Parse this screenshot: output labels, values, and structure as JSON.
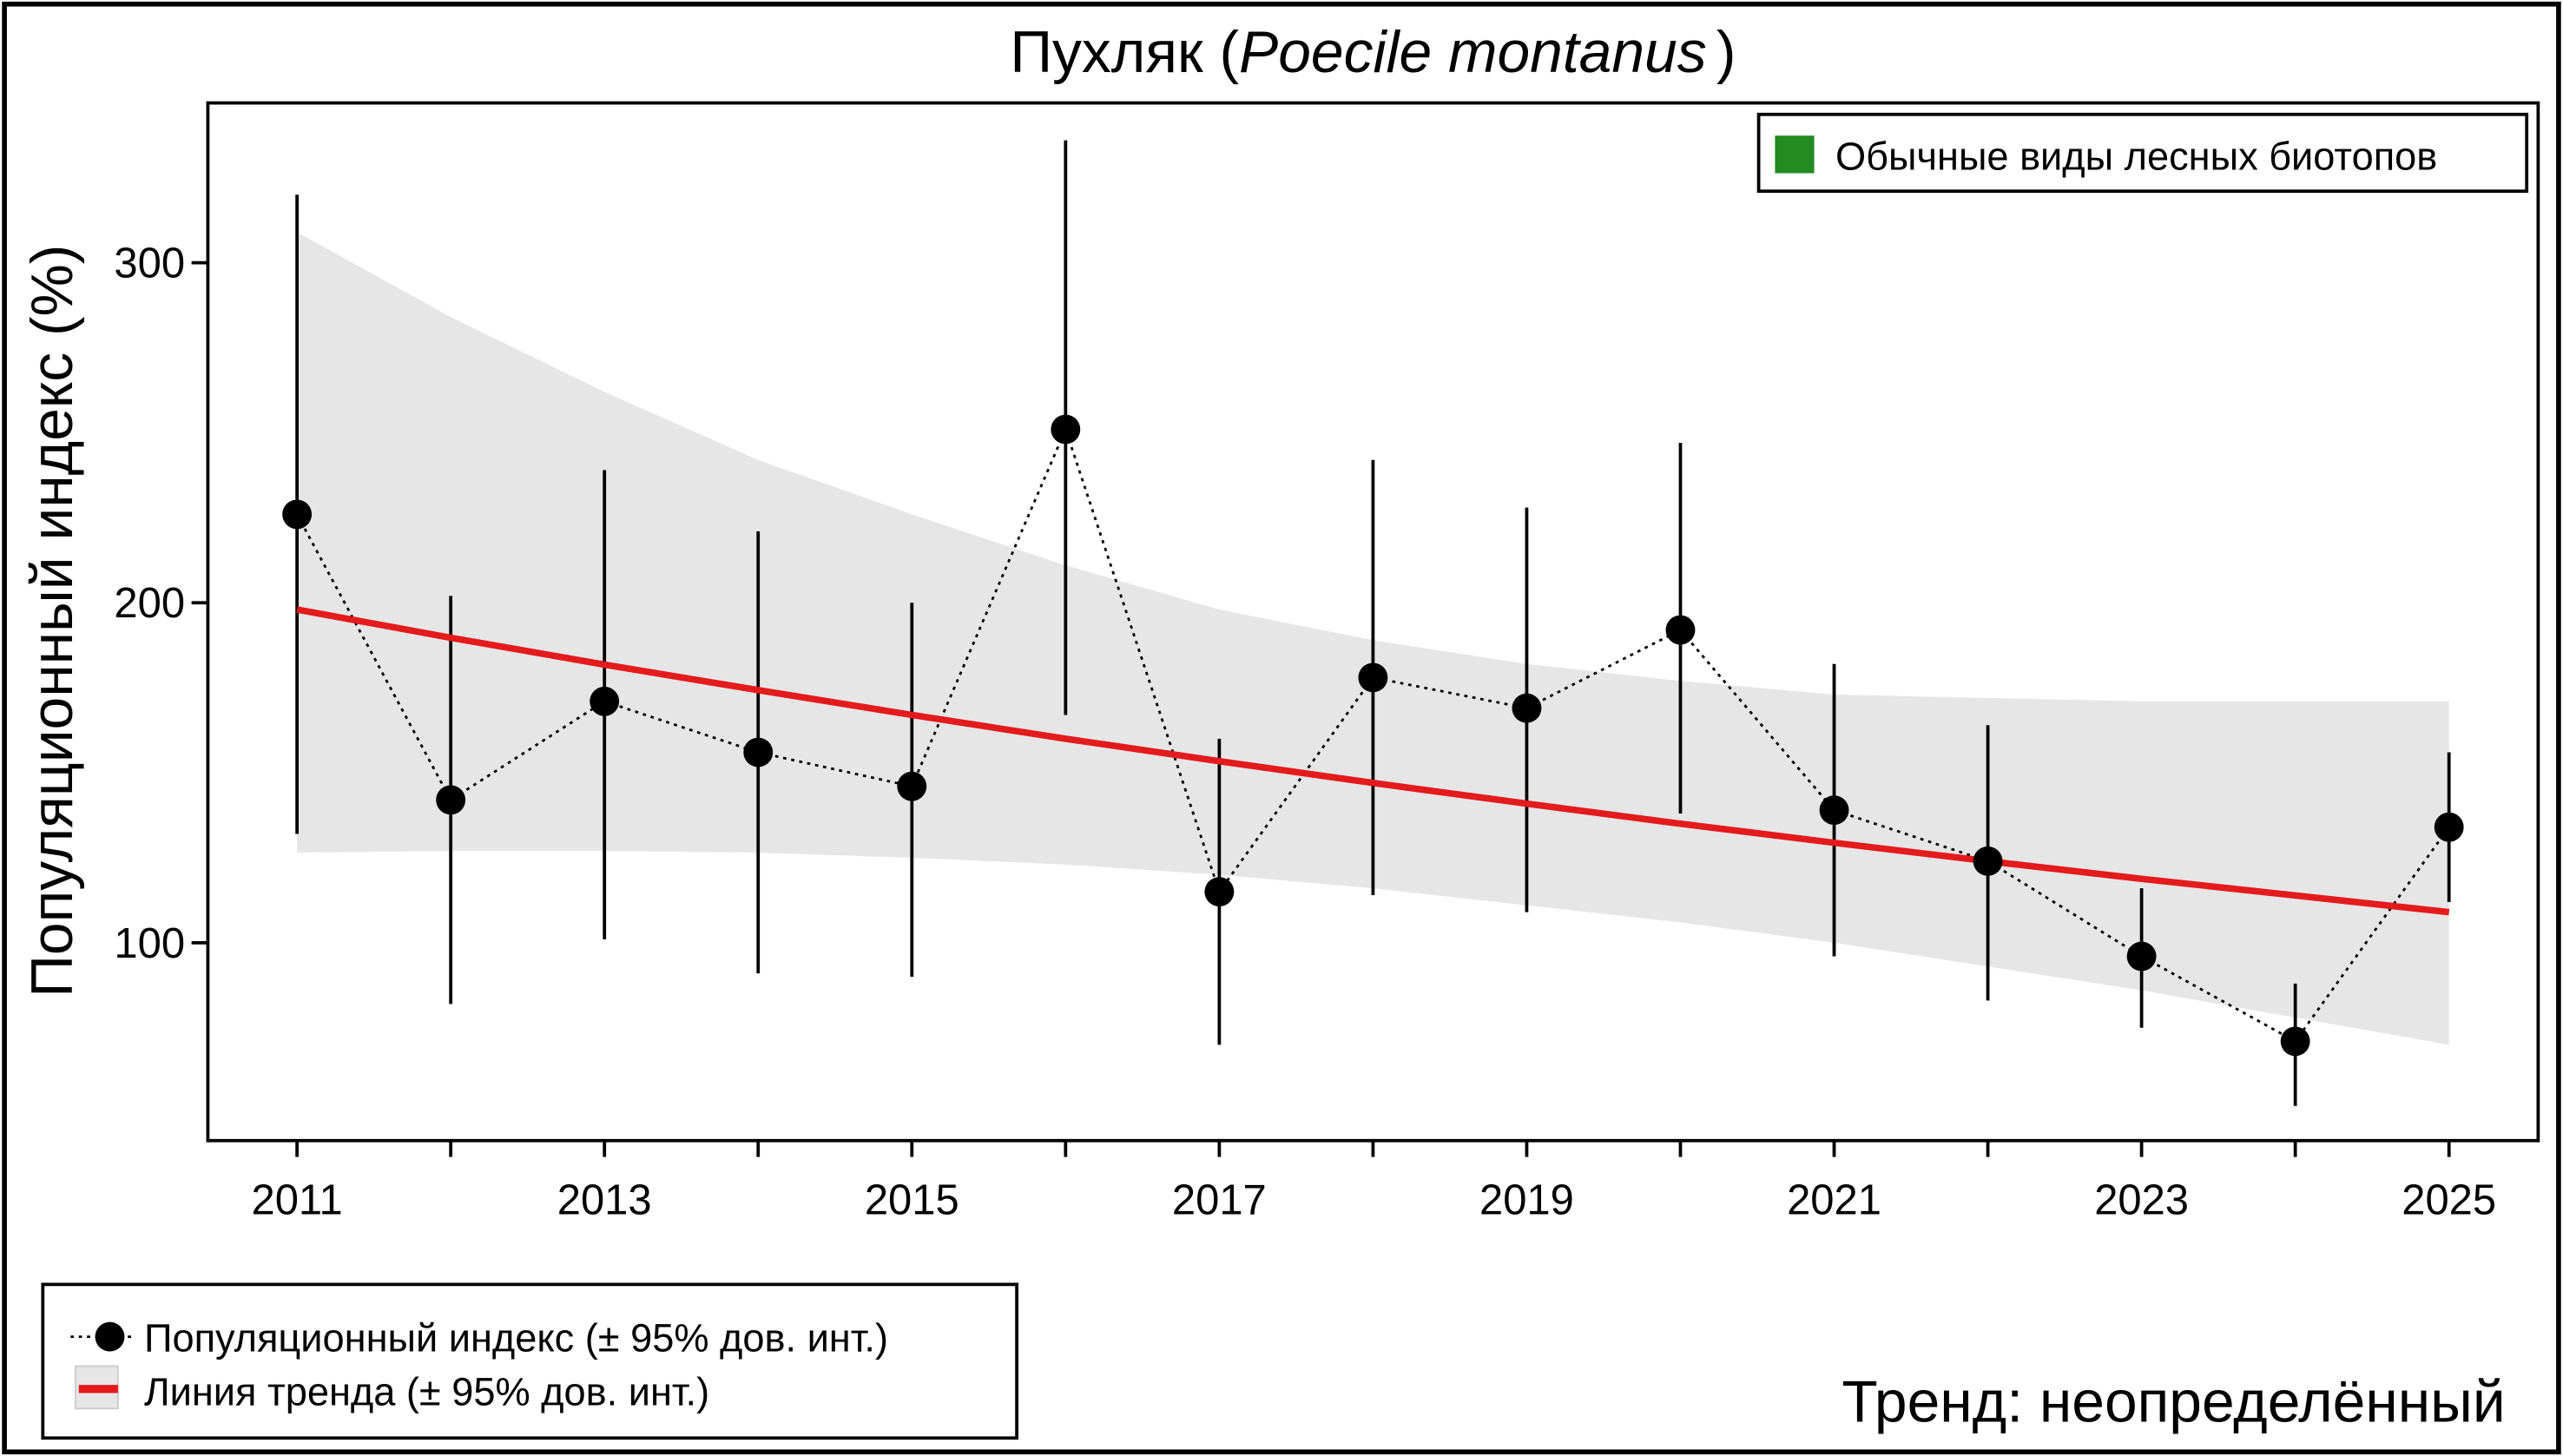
{
  "chart_data": {
    "type": "line",
    "title_plain": "Пухляк (",
    "title_italic": "Poecile montanus",
    "title_close": ")",
    "ylabel": "Популяционный индекс (%)",
    "xlabel": "",
    "xlim": [
      2010.42,
      2025.58
    ],
    "ylim": [
      41.8,
      347
    ],
    "yticks": [
      100,
      200,
      300
    ],
    "xticks": [
      2011,
      2013,
      2015,
      2017,
      2019,
      2021,
      2023,
      2025
    ],
    "xtick_labels": [
      "2011",
      "2013",
      "2015",
      "2017",
      "2019",
      "2021",
      "2023",
      "2025"
    ],
    "ytick_labels": [
      "100",
      "200",
      "300"
    ],
    "grid": false,
    "years": [
      2011,
      2012,
      2013,
      2014,
      2015,
      2016,
      2017,
      2018,
      2019,
      2020,
      2021,
      2022,
      2023,
      2024,
      2025
    ],
    "index": {
      "values": [
        226,
        142,
        171,
        156,
        146,
        251,
        115,
        178,
        169,
        192,
        139,
        124,
        96,
        71,
        134
      ],
      "ci_upper": [
        320,
        202,
        239,
        221,
        200,
        336,
        160,
        242,
        228,
        247,
        182,
        164,
        116,
        88,
        156
      ],
      "ci_lower": [
        132,
        82,
        101,
        91,
        90,
        167,
        70,
        114,
        109,
        138,
        96,
        83,
        75,
        52,
        112
      ]
    },
    "trend": {
      "values": [
        198,
        189.7,
        181.8,
        174.3,
        167,
        160,
        153.4,
        147,
        140.9,
        135,
        129.4,
        124,
        118.8,
        113.9,
        109
      ],
      "ci_upper": [
        309,
        284,
        262,
        242,
        226,
        211,
        198,
        189,
        182,
        177,
        173,
        172,
        171,
        171,
        171
      ],
      "ci_lower": [
        126.5,
        127,
        127,
        126.5,
        125,
        123,
        120,
        116,
        111,
        106,
        100,
        93,
        86,
        78,
        70
      ]
    },
    "colors": {
      "trend": "#e41a1c",
      "band": "#e6e6e6",
      "points": "#000000",
      "group": "#228b22"
    },
    "legend_top_right": {
      "label": "Обычные виды лесных биотопов"
    },
    "legend_bottom_left": {
      "index_label": "Популяционный индекс (± 95% дов. инт.)",
      "trend_label": "Линия тренда (± 95% дов. инт.)"
    },
    "trend_text": "Тренд: неопределённый"
  }
}
